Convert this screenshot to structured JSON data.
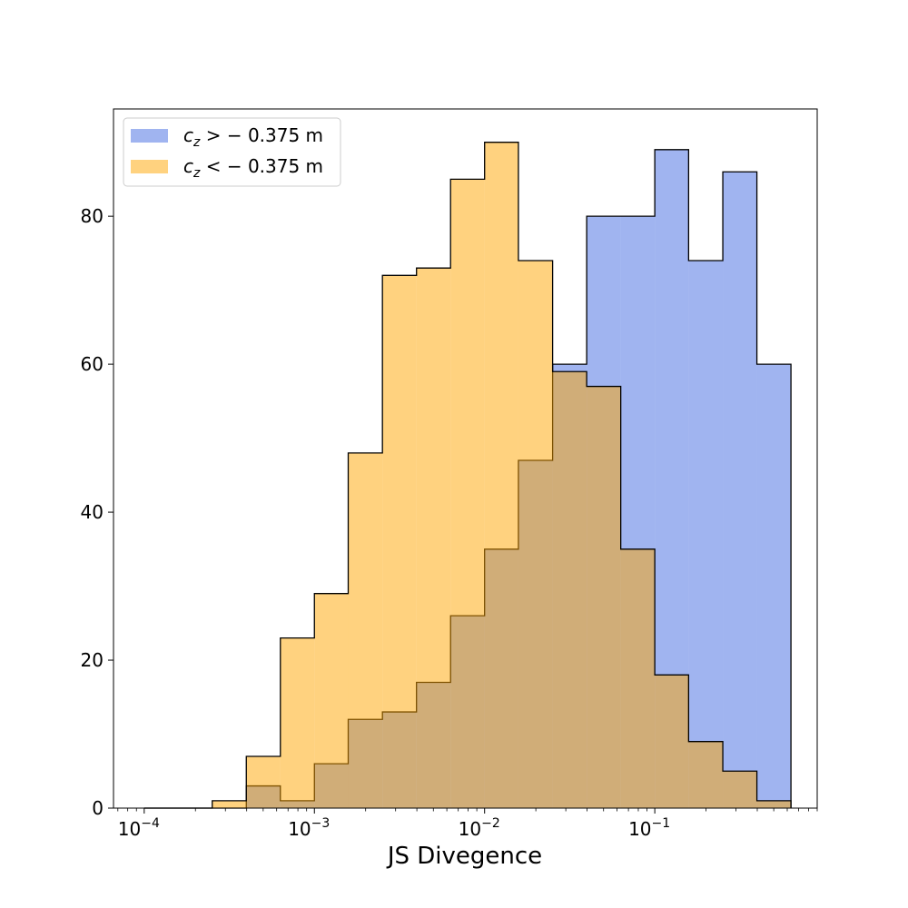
{
  "chart_data": {
    "type": "histogram",
    "xlabel": "JS Divegence",
    "ylabel": "",
    "xscale": "log",
    "xlim": [
      6.6e-05,
      0.9
    ],
    "ylim": [
      0,
      94.5
    ],
    "grid": false,
    "legend_position": "top-left",
    "bin_edges": [
      0.0001,
      0.000158,
      0.000251,
      0.000398,
      0.000631,
      0.001,
      0.00158,
      0.00251,
      0.00398,
      0.00631,
      0.01,
      0.0158,
      0.0251,
      0.0398,
      0.0631,
      0.1,
      0.158,
      0.251,
      0.398,
      0.631
    ],
    "x_ticks": [
      {
        "value": 0.0001,
        "base": "10",
        "exp": "−4"
      },
      {
        "value": 0.001,
        "base": "10",
        "exp": "−3"
      },
      {
        "value": 0.01,
        "base": "10",
        "exp": "−2"
      },
      {
        "value": 0.1,
        "base": "10",
        "exp": "−1"
      }
    ],
    "y_ticks": [
      {
        "value": 0,
        "label": "0"
      },
      {
        "value": 20,
        "label": "20"
      },
      {
        "value": 40,
        "label": "40"
      },
      {
        "value": 60,
        "label": "60"
      },
      {
        "value": 80,
        "label": "80"
      }
    ],
    "series": [
      {
        "name": "c_z > − 0.375 m",
        "legend_var": "c",
        "legend_sub": "z",
        "legend_rest": " > −  0.375 m",
        "color": "#4169E1",
        "opacity": 0.5,
        "values": [
          0,
          0,
          0,
          3,
          1,
          6,
          12,
          13,
          17,
          26,
          35,
          47,
          60,
          80,
          80,
          89,
          74,
          86,
          60
        ]
      },
      {
        "name": "c_z < − 0.375 m",
        "legend_var": "c",
        "legend_sub": "z",
        "legend_rest": " < − 0.375 m",
        "color": "#FFA500",
        "opacity": 0.5,
        "values": [
          0,
          0,
          1,
          7,
          23,
          29,
          48,
          72,
          73,
          85,
          90,
          74,
          59,
          57,
          35,
          18,
          9,
          5,
          1
        ]
      }
    ]
  }
}
